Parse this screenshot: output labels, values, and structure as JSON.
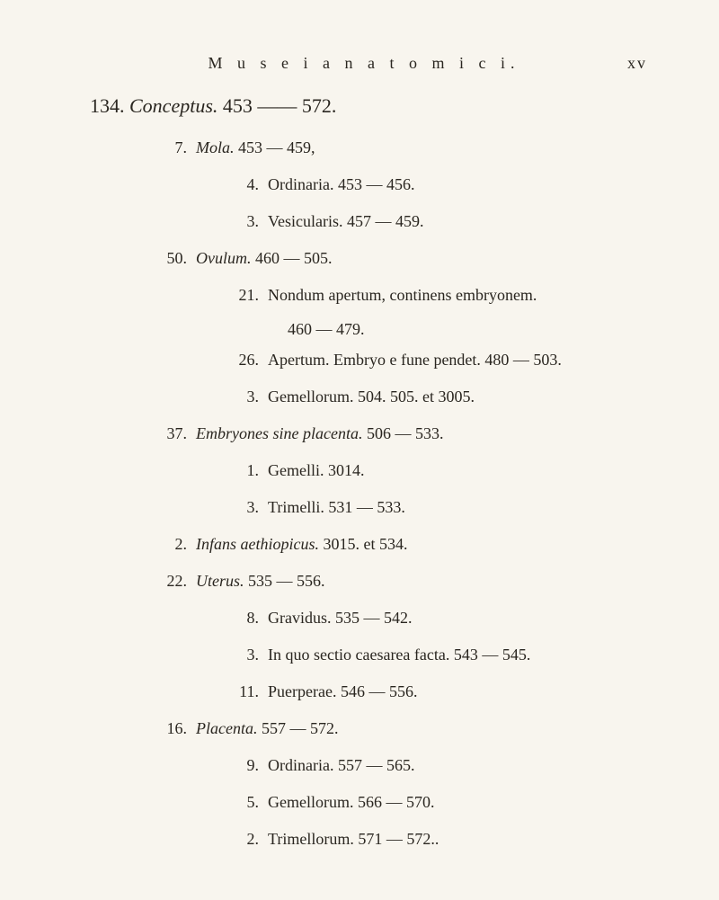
{
  "header": {
    "title": "M u s e i   a n a t o m i c i.",
    "page_num": "xv"
  },
  "heading": {
    "num": "134.",
    "title": "Conceptus.",
    "range": "453 —— 572."
  },
  "entries": [
    {
      "type": "subhead",
      "num": "7.",
      "title": "Mola.",
      "range": "453 — 459,",
      "children": [
        {
          "num": "4.",
          "text": "Ordinaria.  453 — 456."
        },
        {
          "num": "3.",
          "text": "Vesicularis.  457 — 459."
        }
      ]
    },
    {
      "type": "subhead",
      "num": "50.",
      "title": "Ovulum.",
      "range": "460 — 505.",
      "children": [
        {
          "num": "21.",
          "text": "Nondum apertum, continens embryonem.",
          "cont": "460 — 479."
        },
        {
          "num": "26.",
          "text": "Apertum. Embryo e fune pendet.  480 — 503."
        },
        {
          "num": "3.",
          "text": "Gemellorum.  504. 505. et 3005."
        }
      ]
    },
    {
      "type": "subhead",
      "num": "37.",
      "title": "Embryones sine placenta.",
      "range": "506 — 533.",
      "children": [
        {
          "num": "1.",
          "text": "Gemelli.  3014."
        },
        {
          "num": "3.",
          "text": "Trimelli.  531 — 533."
        }
      ]
    },
    {
      "type": "subhead",
      "num": "2.",
      "title": "Infans aethiopicus.",
      "range": "3015. et 534.",
      "children": []
    },
    {
      "type": "subhead",
      "num": "22.",
      "title": "Uterus.",
      "range": "535 — 556.",
      "children": [
        {
          "num": "8.",
          "text": "Gravidus.  535 — 542."
        },
        {
          "num": "3.",
          "text": "In quo sectio caesarea facta.  543 — 545."
        },
        {
          "num": "11.",
          "text": "Puerperae.  546 — 556."
        }
      ]
    },
    {
      "type": "subhead",
      "num": "16.",
      "title": "Placenta.",
      "range": "557 — 572.",
      "children": [
        {
          "num": "9.",
          "text": "Ordinaria.  557 — 565."
        },
        {
          "num": "5.",
          "text": "Gemellorum.  566 — 570."
        },
        {
          "num": "2.",
          "text": "Trimellorum.  571 — 572.."
        }
      ]
    }
  ],
  "style": {
    "background": "#f8f5ee",
    "text_color": "#2a2620",
    "body_fontsize": 18,
    "heading_fontsize": 22
  }
}
